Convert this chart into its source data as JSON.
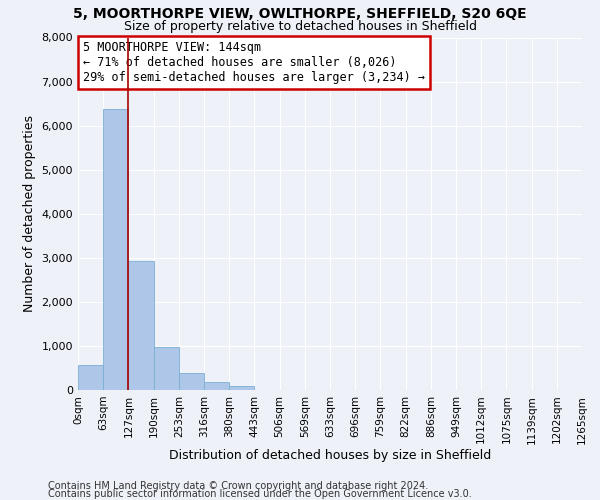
{
  "title": "5, MOORTHORPE VIEW, OWLTHORPE, SHEFFIELD, S20 6QE",
  "subtitle": "Size of property relative to detached houses in Sheffield",
  "xlabel": "Distribution of detached houses by size in Sheffield",
  "ylabel": "Number of detached properties",
  "bin_labels": [
    "0sqm",
    "63sqm",
    "127sqm",
    "190sqm",
    "253sqm",
    "316sqm",
    "380sqm",
    "443sqm",
    "506sqm",
    "569sqm",
    "633sqm",
    "696sqm",
    "759sqm",
    "822sqm",
    "886sqm",
    "949sqm",
    "1012sqm",
    "1075sqm",
    "1139sqm",
    "1202sqm",
    "1265sqm"
  ],
  "bar_values": [
    560,
    6380,
    2930,
    980,
    380,
    175,
    95,
    0,
    0,
    0,
    0,
    0,
    0,
    0,
    0,
    0,
    0,
    0,
    0,
    0
  ],
  "bar_color": "#aec6e8",
  "bar_edge_color": "#7aafd4",
  "vline_x": 2.0,
  "vline_color": "#aa0000",
  "ylim": [
    0,
    8000
  ],
  "yticks": [
    0,
    1000,
    2000,
    3000,
    4000,
    5000,
    6000,
    7000,
    8000
  ],
  "annotation_title": "5 MOORTHORPE VIEW: 144sqm",
  "annotation_line1": "← 71% of detached houses are smaller (8,026)",
  "annotation_line2": "29% of semi-detached houses are larger (3,234) →",
  "annotation_box_color": "#ffffff",
  "annotation_box_edge": "#cc0000",
  "footer1": "Contains HM Land Registry data © Crown copyright and database right 2024.",
  "footer2": "Contains public sector information licensed under the Open Government Licence v3.0.",
  "background_color": "#eef2f8",
  "grid_color": "#ffffff",
  "title_fontsize": 10,
  "subtitle_fontsize": 9,
  "footer_fontsize": 7,
  "axis_label_fontsize": 9,
  "tick_fontsize": 7.5,
  "annot_fontsize": 8.5
}
